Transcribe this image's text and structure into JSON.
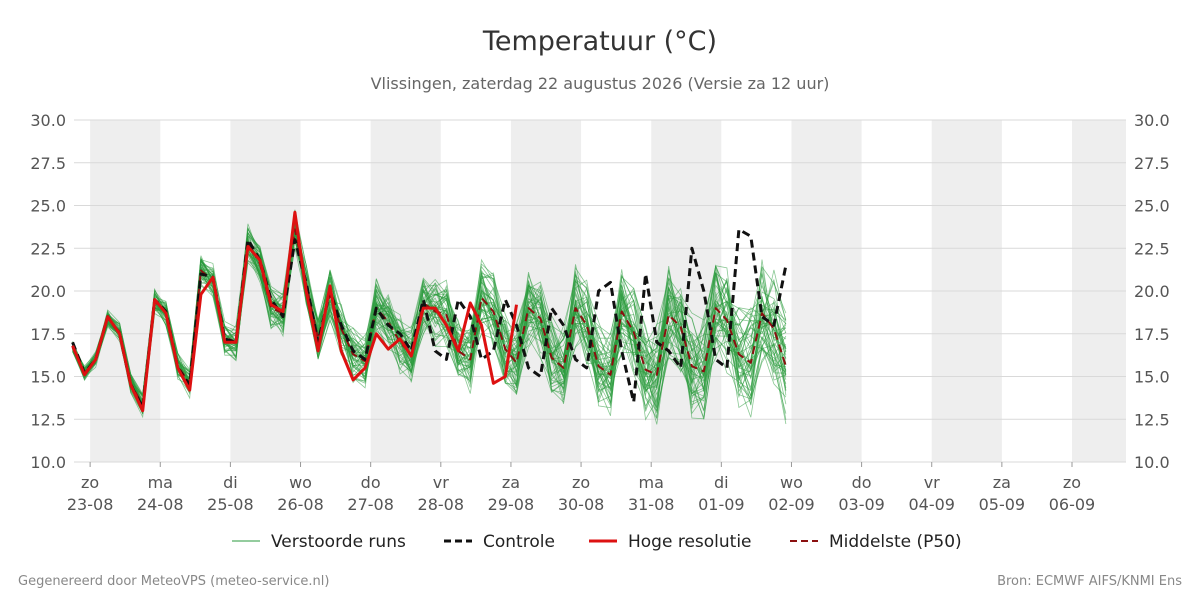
{
  "chart_data": {
    "type": "line",
    "title": "Temperatuur (°C)",
    "subtitle": "Vlissingen, zaterdag 22 augustus 2026 (Versie za 12 uur)",
    "ylim": [
      10,
      30
    ],
    "y_ticks": [
      "10.0",
      "12.5",
      "15.0",
      "17.5",
      "20.0",
      "22.5",
      "25.0",
      "27.5",
      "30.0"
    ],
    "y_tick_values": [
      10,
      12.5,
      15,
      17.5,
      20,
      22.5,
      25,
      27.5,
      30
    ],
    "x_unit": "days since 22-08 00:00",
    "xlim": [
      0.77,
      15.77
    ],
    "x_ticks": [
      {
        "x": 1,
        "day": "zo",
        "date": "23-08"
      },
      {
        "x": 2,
        "day": "ma",
        "date": "24-08"
      },
      {
        "x": 3,
        "day": "di",
        "date": "25-08"
      },
      {
        "x": 4,
        "day": "wo",
        "date": "26-08"
      },
      {
        "x": 5,
        "day": "do",
        "date": "27-08"
      },
      {
        "x": 6,
        "day": "vr",
        "date": "28-08"
      },
      {
        "x": 7,
        "day": "za",
        "date": "29-08"
      },
      {
        "x": 8,
        "day": "zo",
        "date": "30-08"
      },
      {
        "x": 9,
        "day": "ma",
        "date": "31-08"
      },
      {
        "x": 10,
        "day": "di",
        "date": "01-09"
      },
      {
        "x": 11,
        "day": "wo",
        "date": "02-09"
      },
      {
        "x": 12,
        "day": "do",
        "date": "03-09"
      },
      {
        "x": 13,
        "day": "vr",
        "date": "04-09"
      },
      {
        "x": 14,
        "day": "za",
        "date": "05-09"
      },
      {
        "x": 15,
        "day": "zo",
        "date": "06-09"
      }
    ],
    "grid": true,
    "weekend_shading": true,
    "legend_position": "bottom",
    "series": [
      {
        "name": "Controle",
        "color": "#111111",
        "style": "dashed",
        "points": [
          [
            0.75,
            17.0
          ],
          [
            0.92,
            15.2
          ],
          [
            1.08,
            16.0
          ],
          [
            1.25,
            18.5
          ],
          [
            1.42,
            17.5
          ],
          [
            1.58,
            14.5
          ],
          [
            1.75,
            13.2
          ],
          [
            1.92,
            19.5
          ],
          [
            2.08,
            18.8
          ],
          [
            2.25,
            15.5
          ],
          [
            2.42,
            14.5
          ],
          [
            2.58,
            21.0
          ],
          [
            2.75,
            20.8
          ],
          [
            2.92,
            17.2
          ],
          [
            3.08,
            17.0
          ],
          [
            3.25,
            23.0
          ],
          [
            3.42,
            21.8
          ],
          [
            3.58,
            19.5
          ],
          [
            3.75,
            18.5
          ],
          [
            3.92,
            23.0
          ],
          [
            4.08,
            20.5
          ],
          [
            4.25,
            17.0
          ],
          [
            4.42,
            20.0
          ],
          [
            4.58,
            18.0
          ],
          [
            4.75,
            16.5
          ],
          [
            4.92,
            16.0
          ],
          [
            5.08,
            19.0
          ],
          [
            5.25,
            18.0
          ],
          [
            5.42,
            17.5
          ],
          [
            5.58,
            16.5
          ],
          [
            5.75,
            19.5
          ],
          [
            5.92,
            16.5
          ],
          [
            6.08,
            16.0
          ],
          [
            6.25,
            19.5
          ],
          [
            6.42,
            18.5
          ],
          [
            6.58,
            16.0
          ],
          [
            6.75,
            16.5
          ],
          [
            6.92,
            19.5
          ],
          [
            7.08,
            18.0
          ],
          [
            7.25,
            15.5
          ],
          [
            7.42,
            15.0
          ],
          [
            7.58,
            19.0
          ],
          [
            7.75,
            18.0
          ],
          [
            7.92,
            16.0
          ],
          [
            8.08,
            15.5
          ],
          [
            8.25,
            20.0
          ],
          [
            8.42,
            20.5
          ],
          [
            8.58,
            16.5
          ],
          [
            8.75,
            13.5
          ],
          [
            8.92,
            21.0
          ],
          [
            9.08,
            17.0
          ],
          [
            9.25,
            16.5
          ],
          [
            9.42,
            15.5
          ],
          [
            9.58,
            22.5
          ],
          [
            9.75,
            20.0
          ],
          [
            9.92,
            16.0
          ],
          [
            10.08,
            15.5
          ],
          [
            10.25,
            23.6
          ],
          [
            10.42,
            23.2
          ],
          [
            10.58,
            18.5
          ],
          [
            10.75,
            18.0
          ],
          [
            10.92,
            21.5
          ]
        ]
      },
      {
        "name": "Hoge resolutie",
        "color": "#dd1111",
        "style": "solid",
        "points": [
          [
            0.75,
            16.8
          ],
          [
            0.92,
            15.1
          ],
          [
            1.08,
            16.0
          ],
          [
            1.25,
            18.5
          ],
          [
            1.42,
            17.5
          ],
          [
            1.58,
            14.5
          ],
          [
            1.75,
            13.0
          ],
          [
            1.92,
            19.5
          ],
          [
            2.08,
            18.7
          ],
          [
            2.25,
            15.5
          ],
          [
            2.42,
            14.2
          ],
          [
            2.58,
            19.8
          ],
          [
            2.75,
            20.8
          ],
          [
            2.92,
            17.0
          ],
          [
            3.08,
            17.0
          ],
          [
            3.25,
            22.6
          ],
          [
            3.42,
            21.8
          ],
          [
            3.58,
            19.2
          ],
          [
            3.75,
            18.8
          ],
          [
            3.92,
            24.6
          ],
          [
            4.08,
            20.0
          ],
          [
            4.25,
            16.5
          ],
          [
            4.42,
            20.3
          ],
          [
            4.58,
            16.5
          ],
          [
            4.75,
            14.8
          ],
          [
            4.92,
            15.5
          ],
          [
            5.08,
            17.5
          ],
          [
            5.25,
            16.6
          ],
          [
            5.42,
            17.2
          ],
          [
            5.58,
            16.2
          ],
          [
            5.75,
            19.0
          ],
          [
            5.92,
            19.0
          ],
          [
            6.08,
            18.0
          ],
          [
            6.25,
            16.5
          ],
          [
            6.42,
            19.3
          ],
          [
            6.58,
            18.0
          ],
          [
            6.75,
            14.6
          ],
          [
            6.92,
            15.0
          ],
          [
            7.08,
            19.2
          ]
        ]
      },
      {
        "name": "Middelste (P50)",
        "color": "#8b1010",
        "style": "dashed",
        "points": [
          [
            0.75,
            16.7
          ],
          [
            0.92,
            15.2
          ],
          [
            1.08,
            16.0
          ],
          [
            1.25,
            18.4
          ],
          [
            1.42,
            17.6
          ],
          [
            1.58,
            14.6
          ],
          [
            1.75,
            13.3
          ],
          [
            1.92,
            19.4
          ],
          [
            2.08,
            18.7
          ],
          [
            2.25,
            15.6
          ],
          [
            2.42,
            14.6
          ],
          [
            2.58,
            21.2
          ],
          [
            2.75,
            20.6
          ],
          [
            2.92,
            17.3
          ],
          [
            3.08,
            17.0
          ],
          [
            3.25,
            22.8
          ],
          [
            3.42,
            21.6
          ],
          [
            3.58,
            19.0
          ],
          [
            3.75,
            18.7
          ],
          [
            3.92,
            23.6
          ],
          [
            4.08,
            20.4
          ],
          [
            4.25,
            17.2
          ],
          [
            4.42,
            19.8
          ],
          [
            4.58,
            17.8
          ],
          [
            4.75,
            16.3
          ],
          [
            4.92,
            15.9
          ],
          [
            5.08,
            19.0
          ],
          [
            5.25,
            18.2
          ],
          [
            5.42,
            17.0
          ],
          [
            5.58,
            16.3
          ],
          [
            5.75,
            19.3
          ],
          [
            5.92,
            18.8
          ],
          [
            6.08,
            18.6
          ],
          [
            6.25,
            16.5
          ],
          [
            6.42,
            16.0
          ],
          [
            6.58,
            19.6
          ],
          [
            6.75,
            18.8
          ],
          [
            6.92,
            16.6
          ],
          [
            7.08,
            15.8
          ],
          [
            7.25,
            19.0
          ],
          [
            7.42,
            18.4
          ],
          [
            7.58,
            16.1
          ],
          [
            7.75,
            15.5
          ],
          [
            7.92,
            19.0
          ],
          [
            8.08,
            18.0
          ],
          [
            8.25,
            15.6
          ],
          [
            8.42,
            15.1
          ],
          [
            8.58,
            18.8
          ],
          [
            8.75,
            17.6
          ],
          [
            8.92,
            15.4
          ],
          [
            9.08,
            15.1
          ],
          [
            9.25,
            18.6
          ],
          [
            9.42,
            17.9
          ],
          [
            9.58,
            15.6
          ],
          [
            9.75,
            15.3
          ],
          [
            9.92,
            19.0
          ],
          [
            10.08,
            18.3
          ],
          [
            10.25,
            16.3
          ],
          [
            10.42,
            15.8
          ],
          [
            10.58,
            18.7
          ],
          [
            10.75,
            17.8
          ],
          [
            10.92,
            15.6
          ]
        ]
      }
    ],
    "ensemble": {
      "name": "Verstoorde runs",
      "color": "#2a9a3c",
      "members": 50
    }
  },
  "legend": [
    {
      "label": "Verstoorde runs",
      "color": "#2a9a3c",
      "style": "thin"
    },
    {
      "label": "Controle",
      "color": "#111111",
      "style": "dashed"
    },
    {
      "label": "Hoge resolutie",
      "color": "#dd1111",
      "style": "solid"
    },
    {
      "label": "Middelste (P50)",
      "color": "#8b1010",
      "style": "dashed"
    }
  ],
  "footer": {
    "left": "Gegenereerd door MeteoVPS (meteo-service.nl)",
    "right": "Bron: ECMWF AIFS/KNMI Ens"
  }
}
